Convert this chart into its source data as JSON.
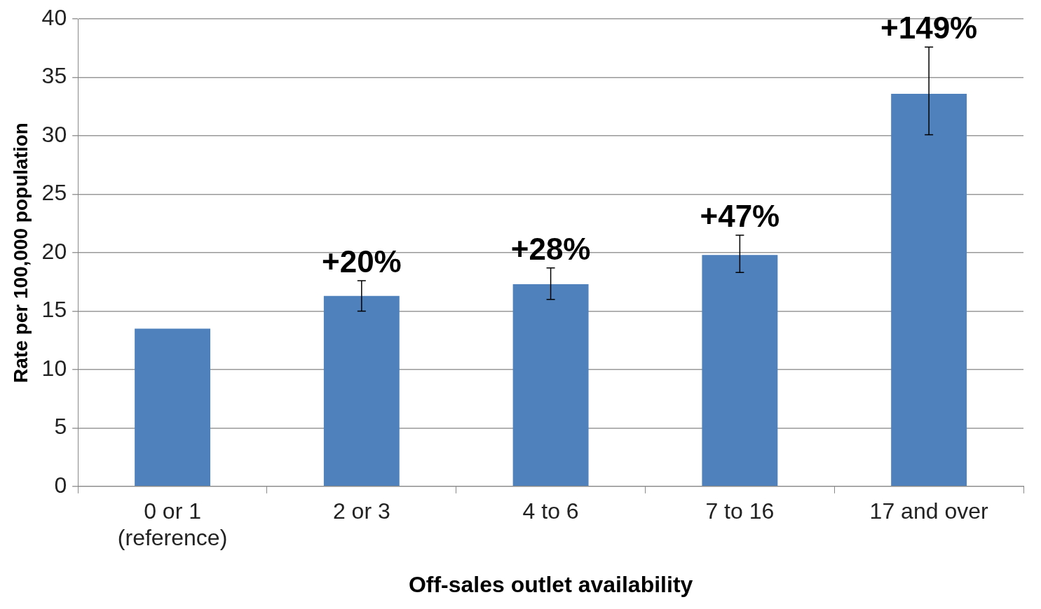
{
  "chart_data": {
    "type": "bar",
    "xlabel": "Off-sales outlet availability",
    "ylabel": "Rate per 100,000 population",
    "categories": [
      "0 or 1\n(reference)",
      "2 or 3",
      "4 to 6",
      "7 to 16",
      "17 and over"
    ],
    "values": [
      13.5,
      16.3,
      17.3,
      19.8,
      33.6
    ],
    "errors": [
      null,
      [
        15.0,
        17.6
      ],
      [
        16.0,
        18.7
      ],
      [
        18.3,
        21.5
      ],
      [
        30.1,
        37.6
      ]
    ],
    "annotations": [
      {
        "text": "+20%",
        "x": "2 or 3",
        "y": 17.6
      },
      {
        "text": "+28%",
        "x": "4 to 6",
        "y": 18.7
      },
      {
        "text": "+47%",
        "x": "7 to 16",
        "y": 21.5
      },
      {
        "text": "+149%",
        "x": "17 and over",
        "y": 37.6
      }
    ],
    "color": "#4f81bd",
    "ylim": [
      0,
      40
    ],
    "yticks": [
      0,
      5,
      10,
      15,
      20,
      25,
      30,
      35,
      40
    ],
    "grid": "y",
    "legend": false
  }
}
